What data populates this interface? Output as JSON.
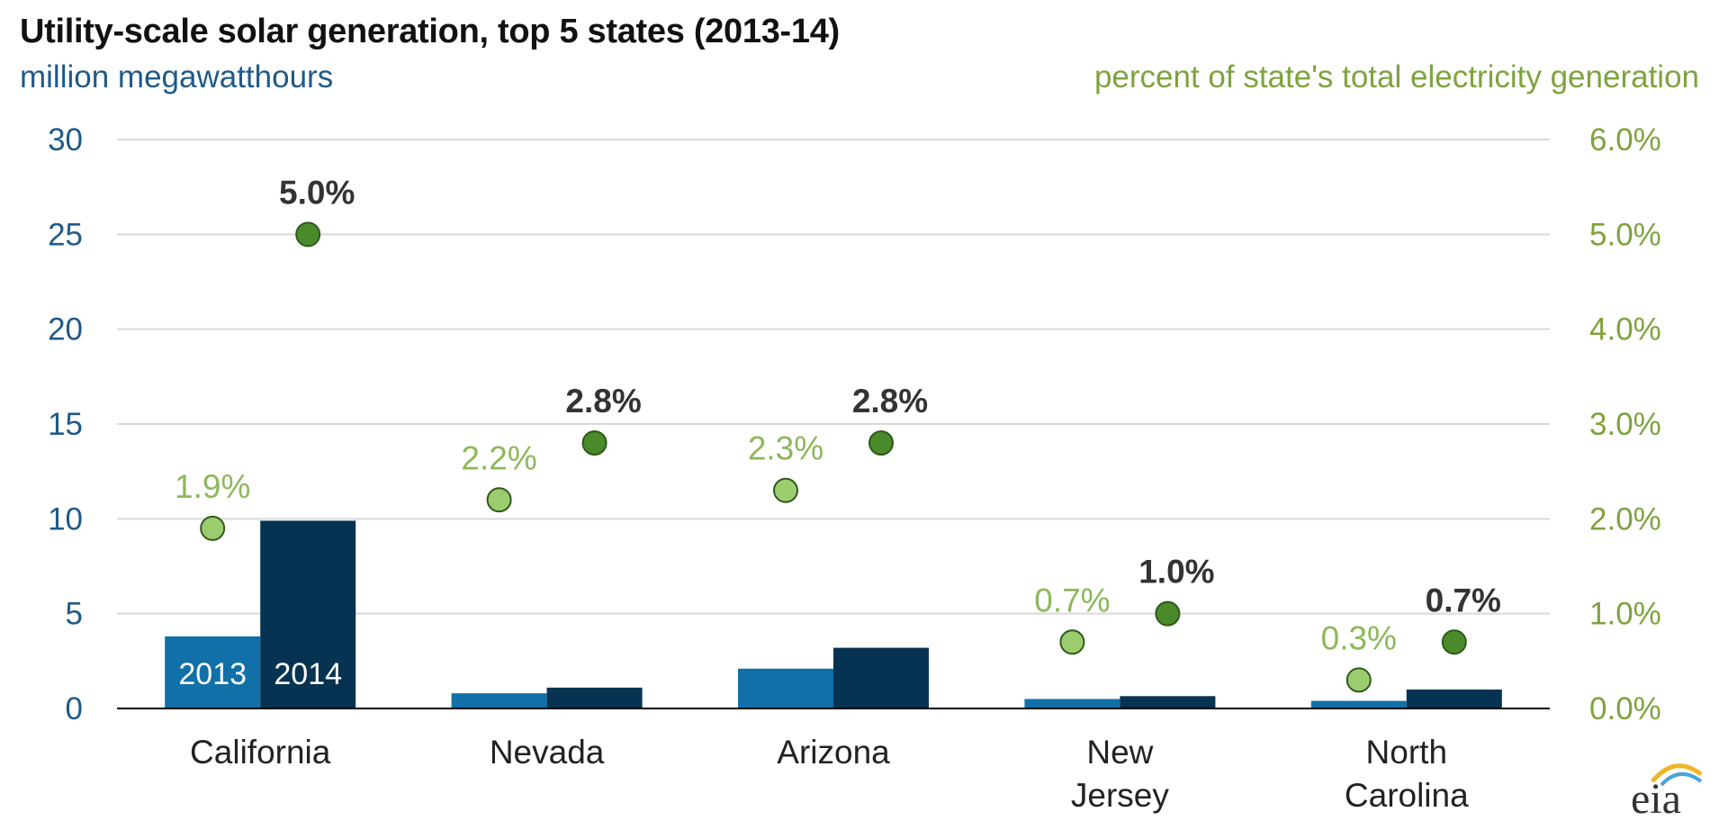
{
  "chart_data": {
    "type": "bar",
    "title": "Utility-scale solar generation, top 5 states (2013-14)",
    "left_axis_label": "million megawatthours",
    "right_axis_label": "percent of state's total electricity generation",
    "categories": [
      [
        "California"
      ],
      [
        "Nevada"
      ],
      [
        "Arizona"
      ],
      [
        "New",
        "Jersey"
      ],
      [
        "North",
        "Carolina"
      ]
    ],
    "ylim_left": [
      0,
      30
    ],
    "yticks_left": [
      "0",
      "5",
      "10",
      "15",
      "20",
      "25",
      "30"
    ],
    "ylim_right": [
      0,
      6
    ],
    "yticks_right": [
      "0.0%",
      "1.0%",
      "2.0%",
      "3.0%",
      "4.0%",
      "5.0%",
      "6.0%"
    ],
    "grid": true,
    "series": [
      {
        "name": "2013",
        "kind": "bar",
        "axis": "left",
        "color": "#1170a8",
        "values": [
          3.8,
          0.8,
          2.1,
          0.5,
          0.4
        ]
      },
      {
        "name": "2014",
        "kind": "bar",
        "axis": "left",
        "color": "#063352",
        "values": [
          9.9,
          1.1,
          3.2,
          0.65,
          1.0
        ]
      },
      {
        "kind": "point",
        "axis": "right",
        "color": "#9ccc6e",
        "label_color": "#8db85a",
        "label_bold": false,
        "values": [
          1.9,
          2.2,
          2.3,
          0.7,
          0.3
        ],
        "labels": [
          "1.9%",
          "2.2%",
          "2.3%",
          "0.7%",
          "0.3%"
        ]
      },
      {
        "kind": "point",
        "axis": "right",
        "color": "#4a8a2a",
        "label_color": "#333333",
        "label_bold": true,
        "values": [
          5.0,
          2.8,
          2.8,
          1.0,
          0.7
        ],
        "labels": [
          "5.0%",
          "2.8%",
          "2.8%",
          "1.0%",
          "0.7%"
        ]
      }
    ],
    "in_bar_labels": [
      "2013",
      "2014"
    ]
  },
  "logo": {
    "text": "eia"
  },
  "colors": {
    "left_axis": "#1f5a88",
    "right_axis": "#7ea33e",
    "grid": "#d9d9d9",
    "baseline": "#000000"
  }
}
